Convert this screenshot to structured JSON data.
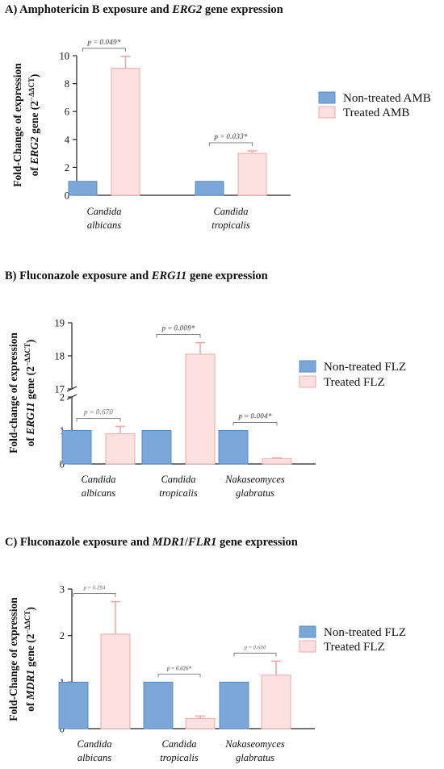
{
  "panels": {
    "a": {
      "title_prefix": "A) Amphotericin B exposure and ",
      "title_gene": "ERG2",
      "title_suffix": " gene expression"
    },
    "b": {
      "title_prefix": "B) Fluconazole exposure and ",
      "title_gene": "ERG11",
      "title_suffix": " gene expression"
    },
    "c": {
      "title_prefix": "C) Fluconazole exposure and ",
      "title_gene1": "MDR1",
      "title_sep": "/",
      "title_gene2": "FLR1",
      "title_suffix": " gene expression"
    }
  },
  "colors": {
    "nontreated_fill": "#7ba7d8",
    "nontreated_stroke": "#5b8cc4",
    "treated_fill": "#fde0e0",
    "treated_stroke": "#f0a8a8",
    "axis": "#222222",
    "bracket": "#777777",
    "pval_sig": "#777777",
    "pval_ns": "#9a9a9a"
  },
  "chart_data": [
    {
      "type": "bar",
      "ylabel_line1": "Fold-Change of expression",
      "ylabel_gene": "ERG2",
      "ylabel_line2_suffix": " gene (2",
      "ylabel_sup": "−ΔΔCT",
      "ylabel_close": ")",
      "categories": [
        [
          "Candida",
          "albicans"
        ],
        [
          "Candida",
          "tropicalis"
        ]
      ],
      "series": [
        {
          "name": "Non-treated AMB",
          "values": [
            1.0,
            1.0
          ],
          "errors": [
            0,
            0
          ]
        },
        {
          "name": "Treated AMB",
          "values": [
            9.1,
            3.0
          ],
          "errors": [
            0.85,
            0.18
          ]
        }
      ],
      "pvalues": [
        "p = 0.049*",
        "p = 0.033*"
      ],
      "pvalue_significant": [
        true,
        true
      ],
      "ylim": [
        0,
        10
      ],
      "yticks": [
        0,
        2,
        4,
        6,
        8,
        10
      ]
    },
    {
      "type": "bar",
      "ylabel_line1": "Fold-change of expression",
      "ylabel_gene": "ERG11",
      "ylabel_line2_suffix": " gene (2",
      "ylabel_sup": "−ΔΔCT",
      "ylabel_close": ")",
      "categories": [
        [
          "Candida",
          "albicans"
        ],
        [
          "Candida",
          "tropicalis"
        ],
        [
          "Nakaseomyces",
          "glabratus"
        ]
      ],
      "series": [
        {
          "name": "Non-treated FLZ",
          "values": [
            1.0,
            1.0,
            1.0
          ],
          "errors": [
            0,
            0,
            0
          ]
        },
        {
          "name": "Treated FLZ",
          "values": [
            0.9,
            18.05,
            0.16
          ],
          "errors": [
            0.22,
            0.35,
            0.02
          ]
        }
      ],
      "pvalues": [
        "p = 0.670",
        "p = 0.009*",
        "p = 0.004*"
      ],
      "pvalue_significant": [
        false,
        true,
        true
      ],
      "axis_break": {
        "lower_range": [
          0,
          2
        ],
        "upper_range": [
          17,
          19
        ]
      },
      "yticks_lower": [
        0,
        1,
        2
      ],
      "yticks_upper": [
        17,
        18,
        19
      ]
    },
    {
      "type": "bar",
      "ylabel_line1": "Fold-Change of expression",
      "ylabel_gene": "MDR1",
      "ylabel_line2_suffix": " gene (2",
      "ylabel_sup": "−ΔΔCT",
      "ylabel_close": ")",
      "categories": [
        [
          "Candida",
          "albicans"
        ],
        [
          "Candida",
          "tropicalis"
        ],
        [
          "Nakaseomyces",
          "glabratus"
        ]
      ],
      "series": [
        {
          "name": "Non-treated FLZ",
          "values": [
            1.0,
            1.0,
            1.0
          ],
          "errors": [
            0,
            0,
            0
          ]
        },
        {
          "name": "Treated FLZ",
          "values": [
            2.03,
            0.22,
            1.15
          ],
          "errors": [
            0.7,
            0.05,
            0.3
          ]
        }
      ],
      "pvalues": [
        "p = 0.284",
        "p = 0.026*",
        "p = 0.600"
      ],
      "pvalue_significant": [
        false,
        true,
        false
      ],
      "ylim": [
        0,
        3
      ],
      "yticks": [
        0,
        1,
        2,
        3
      ]
    }
  ]
}
